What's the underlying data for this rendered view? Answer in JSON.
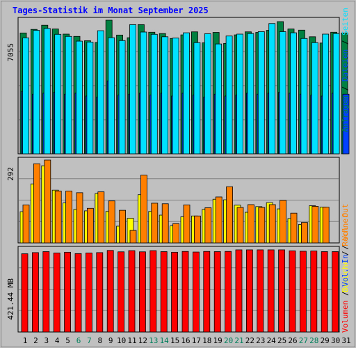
{
  "title": "Tages-Statistik im Monat September 2025",
  "colors": {
    "background": "#c0c0c0",
    "plot_background": "#c0c0c0",
    "anfragen": "#008040",
    "dateien": "#0040ff",
    "seiten": "#00e0ff",
    "besuche": "#ffff00",
    "rechner": "#ff8000",
    "volumen": "#ff0000",
    "weekend_label": "#00805c",
    "weekday_label": "#000000"
  },
  "chart_data": [
    {
      "type": "bar",
      "panel": "top",
      "y_max_label": "7055",
      "ylim": [
        0,
        7055
      ],
      "grid": true,
      "x": [
        "1",
        "2",
        "3",
        "4",
        "5",
        "6",
        "7",
        "8",
        "9",
        "10",
        "11",
        "12",
        "13",
        "14",
        "15",
        "16",
        "17",
        "18",
        "19",
        "20",
        "21",
        "22",
        "23",
        "24",
        "25",
        "26",
        "27",
        "28",
        "29",
        "30",
        "31"
      ],
      "weekend_days": [
        "6",
        "7",
        "13",
        "14",
        "20",
        "21",
        "27",
        "28"
      ],
      "legend": [
        {
          "text": "Anfragen",
          "color_key": "anfragen"
        },
        {
          "text": "Dateien",
          "color_key": "dateien"
        },
        {
          "text": "Seiten",
          "color_key": "seiten"
        }
      ],
      "separators": [
        "/",
        "/"
      ],
      "series": [
        {
          "name": "Anfragen",
          "color_key": "anfragen",
          "values": [
            6380,
            6570,
            6790,
            6590,
            6320,
            6200,
            5970,
            5880,
            7055,
            6270,
            6130,
            6820,
            6420,
            6350,
            6090,
            6280,
            6440,
            5860,
            6410,
            5830,
            6280,
            6440,
            6410,
            6520,
            6980,
            6590,
            6530,
            6180,
            5850,
            6420,
            6380
          ]
        },
        {
          "name": "Dateien",
          "color_key": "dateien",
          "values": [
            3300,
            3150,
            3200,
            3250,
            3150,
            3200,
            3050,
            3000,
            3850,
            3100,
            3150,
            3200,
            3100,
            3200,
            3050,
            3200,
            3100,
            3000,
            3150,
            3050,
            3100,
            3200,
            3150,
            3200,
            3250,
            3200,
            3150,
            3100,
            3050,
            3200,
            3150
          ]
        },
        {
          "name": "Seiten",
          "color_key": "seiten",
          "values": [
            6120,
            6520,
            6620,
            6310,
            6200,
            5950,
            5900,
            6500,
            6130,
            5980,
            6820,
            6430,
            6310,
            6180,
            6110,
            6390,
            5870,
            6340,
            5800,
            6220,
            6320,
            6350,
            6450,
            6880,
            6450,
            6390,
            6090,
            5870,
            6320,
            6350,
            null
          ]
        }
      ]
    },
    {
      "type": "bar",
      "panel": "middle",
      "y_max_label": "292",
      "ylim": [
        0,
        292
      ],
      "grid": true,
      "x": [
        "1",
        "2",
        "3",
        "4",
        "5",
        "6",
        "7",
        "8",
        "9",
        "10",
        "11",
        "12",
        "13",
        "14",
        "15",
        "16",
        "17",
        "18",
        "19",
        "20",
        "21",
        "22",
        "23",
        "24",
        "25",
        "26",
        "27",
        "28",
        "29",
        "30",
        "31"
      ],
      "legend": [
        {
          "text": "Besuche",
          "color_key": "besuche"
        },
        {
          "text": "Rechner",
          "color_key": "rechner"
        }
      ],
      "separators": [
        "/"
      ],
      "series": [
        {
          "name": "Besuche",
          "color_key": "besuche",
          "values": [
            110,
            208,
            272,
            186,
            141,
            118,
            113,
            174,
            111,
            59,
            87,
            170,
            111,
            98,
            60,
            92,
            95,
            118,
            154,
            152,
            133,
            108,
            128,
            142,
            120,
            86,
            65,
            131,
            126,
            null,
            null
          ]
        },
        {
          "name": "Rechner",
          "color_key": "rechner",
          "values": [
            134,
            279,
            292,
            183,
            183,
            177,
            122,
            180,
            148,
            115,
            44,
            239,
            140,
            138,
            68,
            134,
            95,
            124,
            162,
            198,
            125,
            135,
            125,
            135,
            150,
            105,
            72,
            129,
            126,
            null,
            null
          ]
        }
      ]
    },
    {
      "type": "bar",
      "panel": "bottom",
      "y_max_label": "421.44 MB",
      "ylim": [
        0,
        421.44
      ],
      "grid": true,
      "x": [
        "1",
        "2",
        "3",
        "4",
        "5",
        "6",
        "7",
        "8",
        "9",
        "10",
        "11",
        "12",
        "13",
        "14",
        "15",
        "16",
        "17",
        "18",
        "19",
        "20",
        "21",
        "22",
        "23",
        "24",
        "25",
        "26",
        "27",
        "28",
        "29",
        "30",
        "31"
      ],
      "legend": [
        {
          "text": "Volumen",
          "color_key": "volumen"
        },
        {
          "text": "Vol. In",
          "color_key": "dateien"
        },
        {
          "text": "Vol. Out",
          "color_key": "rechner"
        }
      ],
      "separators": [
        "/",
        "/"
      ],
      "series": [
        {
          "name": "Volumen",
          "color_key": "volumen",
          "values": [
            398,
            404,
            409,
            402,
            406,
            399,
            402,
            404,
            415,
            408,
            414,
            408,
            414,
            409,
            406,
            410,
            407,
            410,
            409,
            410,
            418,
            418,
            418,
            418,
            418,
            413,
            411,
            412,
            409,
            409,
            null
          ]
        }
      ]
    }
  ]
}
